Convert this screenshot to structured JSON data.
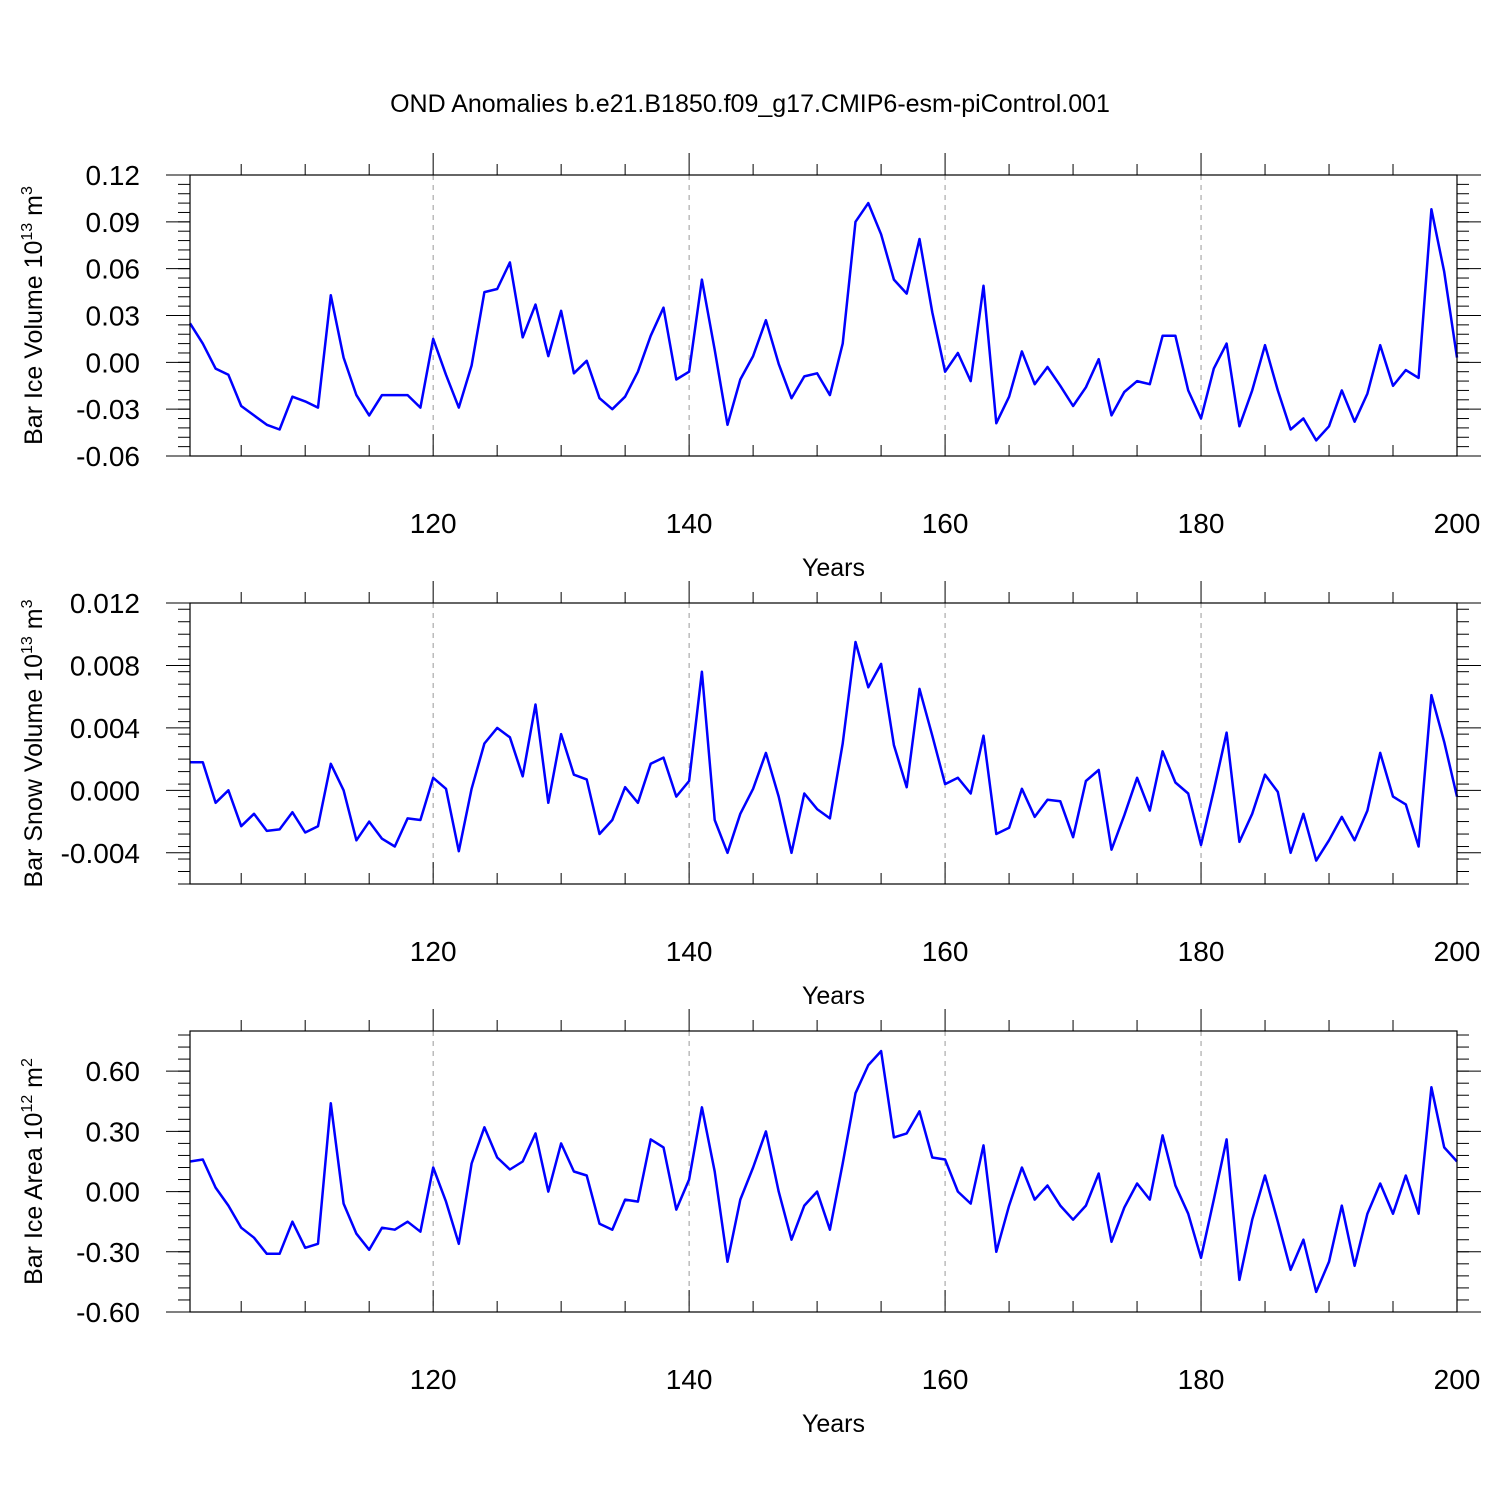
{
  "title": "OND Anomalies b.e21.B1850.f09_g17.CMIP6-esm-piControl.001",
  "colors": {
    "line": "#0000ff",
    "axis": "#000000",
    "grid": "#999999"
  },
  "chart_data": [
    {
      "type": "line",
      "ylabel": {
        "base": "Bar Ice Volume 10",
        "exp": "13",
        "unit": " m",
        "unit_exp": "3"
      },
      "xlabel": "Years",
      "xlim": [
        101,
        200
      ],
      "ylim": [
        -0.06,
        0.12
      ],
      "xticks": [
        120,
        140,
        160,
        180,
        200
      ],
      "xtick_labels": [
        "120",
        "140",
        "160",
        "180",
        "200"
      ],
      "yticks": [
        -0.06,
        -0.03,
        0.0,
        0.03,
        0.06,
        0.09,
        0.12
      ],
      "ytick_labels": [
        "-0.06",
        "-0.03",
        "0.00",
        "0.03",
        "0.06",
        "0.09",
        "0.12"
      ],
      "grid": "dashed vertical at major x ticks",
      "x_start": 101,
      "values": [
        0.025,
        0.012,
        -0.004,
        -0.008,
        -0.028,
        -0.034,
        -0.04,
        -0.043,
        -0.022,
        -0.025,
        -0.029,
        0.043,
        0.003,
        -0.021,
        -0.034,
        -0.021,
        -0.021,
        -0.021,
        -0.029,
        0.015,
        -0.008,
        -0.029,
        -0.002,
        0.045,
        0.047,
        0.064,
        0.016,
        0.037,
        0.004,
        0.033,
        -0.007,
        0.001,
        -0.023,
        -0.03,
        -0.022,
        -0.006,
        0.017,
        0.035,
        -0.011,
        -0.006,
        0.053,
        0.008,
        -0.04,
        -0.011,
        0.004,
        0.027,
        -0.001,
        -0.023,
        -0.009,
        -0.007,
        -0.021,
        0.012,
        0.09,
        0.102,
        0.082,
        0.053,
        0.044,
        0.079,
        0.032,
        -0.006,
        0.006,
        -0.012,
        0.049,
        -0.039,
        -0.022,
        0.007,
        -0.014,
        -0.003,
        -0.015,
        -0.028,
        -0.016,
        0.002,
        -0.034,
        -0.019,
        -0.012,
        -0.014,
        0.017,
        0.017,
        -0.018,
        -0.036,
        -0.004,
        0.012,
        -0.041,
        -0.018,
        0.011,
        -0.018,
        -0.043,
        -0.036,
        -0.05,
        -0.041,
        -0.018,
        -0.038,
        -0.02,
        0.011,
        -0.015,
        -0.005,
        -0.01,
        0.098,
        0.058,
        0.003
      ]
    },
    {
      "type": "line",
      "ylabel": {
        "base": "Bar Snow Volume 10",
        "exp": "13",
        "unit": " m",
        "unit_exp": "3"
      },
      "xlabel": "Years",
      "xlim": [
        101,
        200
      ],
      "ylim": [
        -0.006,
        0.012
      ],
      "xticks": [
        120,
        140,
        160,
        180,
        200
      ],
      "xtick_labels": [
        "120",
        "140",
        "160",
        "180",
        "200"
      ],
      "yticks": [
        -0.004,
        0.0,
        0.004,
        0.008,
        0.012
      ],
      "ytick_labels": [
        "-0.004",
        "0.000",
        "0.004",
        "0.008",
        "0.012"
      ],
      "grid": "dashed vertical at major x ticks",
      "x_start": 101,
      "values": [
        0.0018,
        0.0018,
        -0.0008,
        0.0,
        -0.0023,
        -0.0015,
        -0.0026,
        -0.0025,
        -0.0014,
        -0.0027,
        -0.0023,
        0.0017,
        0.0,
        -0.0032,
        -0.002,
        -0.0031,
        -0.0036,
        -0.0018,
        -0.0019,
        0.0008,
        0.0001,
        -0.0039,
        0.0001,
        0.003,
        0.004,
        0.0034,
        0.0009,
        0.0055,
        -0.0008,
        0.0036,
        0.001,
        0.0007,
        -0.0028,
        -0.0019,
        0.0002,
        -0.0008,
        0.0017,
        0.0021,
        -0.0004,
        0.0006,
        0.0076,
        -0.0019,
        -0.004,
        -0.0015,
        0.0001,
        0.0024,
        -0.0004,
        -0.004,
        -0.0002,
        -0.0012,
        -0.0018,
        0.003,
        0.0095,
        0.0066,
        0.0081,
        0.0029,
        0.0002,
        0.0065,
        0.0035,
        0.0004,
        0.0008,
        -0.0002,
        0.0035,
        -0.0028,
        -0.0024,
        0.0001,
        -0.0017,
        -0.0006,
        -0.0007,
        -0.003,
        0.0006,
        0.0013,
        -0.0038,
        -0.0016,
        0.0008,
        -0.0013,
        0.0025,
        0.0005,
        -0.0002,
        -0.0035,
        0.0,
        0.0037,
        -0.0033,
        -0.0015,
        0.001,
        -0.0001,
        -0.004,
        -0.0015,
        -0.0045,
        -0.0032,
        -0.0017,
        -0.0032,
        -0.0013,
        0.0024,
        -0.0004,
        -0.0009,
        -0.0036,
        0.0061,
        0.0031,
        -0.0004
      ]
    },
    {
      "type": "line",
      "ylabel": {
        "base": "Bar Ice Area 10",
        "exp": "12",
        "unit": " m",
        "unit_exp": "2"
      },
      "xlabel": "Years",
      "xlim": [
        101,
        200
      ],
      "ylim": [
        -0.6,
        0.8
      ],
      "xticks": [
        120,
        140,
        160,
        180,
        200
      ],
      "xtick_labels": [
        "120",
        "140",
        "160",
        "180",
        "200"
      ],
      "yticks": [
        -0.6,
        -0.3,
        0.0,
        0.3,
        0.6
      ],
      "ytick_labels": [
        "-0.60",
        "-0.30",
        "0.00",
        "0.30",
        "0.60"
      ],
      "grid": "dashed vertical at major x ticks",
      "x_start": 101,
      "values": [
        0.15,
        0.16,
        0.02,
        -0.07,
        -0.18,
        -0.23,
        -0.31,
        -0.31,
        -0.15,
        -0.28,
        -0.26,
        0.44,
        -0.06,
        -0.21,
        -0.29,
        -0.18,
        -0.19,
        -0.15,
        -0.2,
        0.12,
        -0.05,
        -0.26,
        0.14,
        0.32,
        0.17,
        0.11,
        0.15,
        0.29,
        0.0,
        0.24,
        0.1,
        0.08,
        -0.16,
        -0.19,
        -0.04,
        -0.05,
        0.26,
        0.22,
        -0.09,
        0.06,
        0.42,
        0.1,
        -0.35,
        -0.04,
        0.12,
        0.3,
        0.0,
        -0.24,
        -0.07,
        0.0,
        -0.19,
        0.14,
        0.49,
        0.63,
        0.7,
        0.27,
        0.29,
        0.4,
        0.17,
        0.16,
        0.0,
        -0.06,
        0.23,
        -0.3,
        -0.07,
        0.12,
        -0.04,
        0.03,
        -0.07,
        -0.14,
        -0.07,
        0.09,
        -0.25,
        -0.08,
        0.04,
        -0.04,
        0.28,
        0.03,
        -0.11,
        -0.33,
        -0.04,
        0.26,
        -0.44,
        -0.14,
        0.08,
        -0.15,
        -0.39,
        -0.24,
        -0.5,
        -0.35,
        -0.07,
        -0.37,
        -0.11,
        0.04,
        -0.11,
        0.08,
        -0.11,
        0.52,
        0.22,
        0.15
      ]
    }
  ]
}
